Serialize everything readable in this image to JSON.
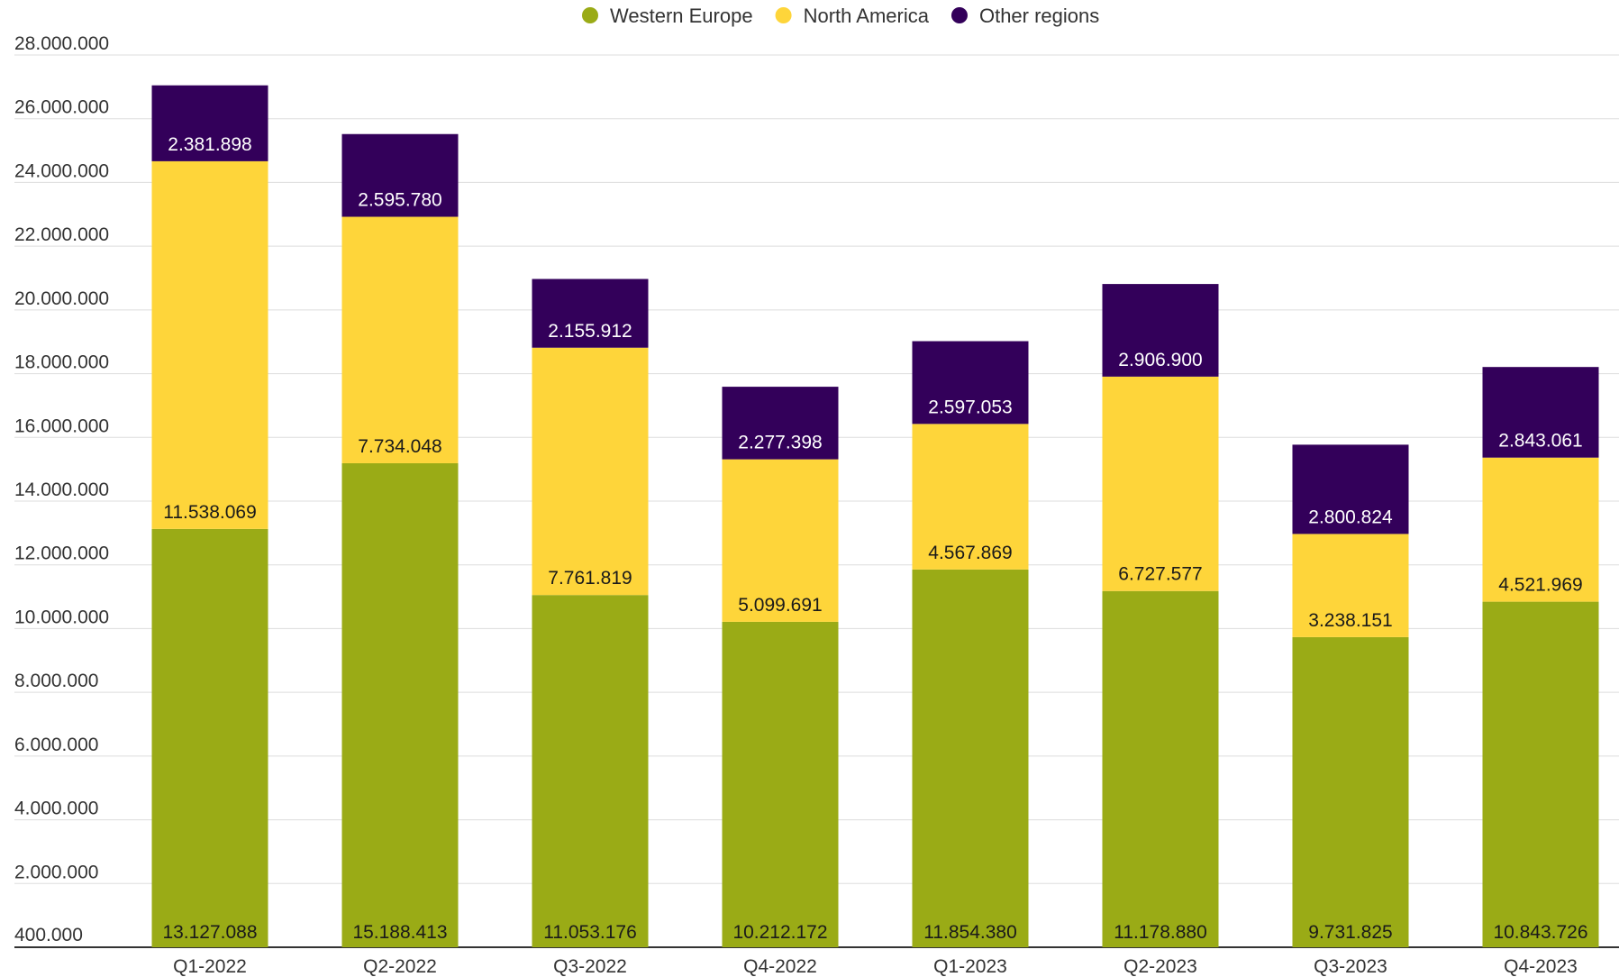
{
  "chart_data": {
    "type": "bar",
    "stacked": true,
    "categories": [
      "Q1-2022",
      "Q2-2022",
      "Q3-2022",
      "Q4-2022",
      "Q1-2023",
      "Q2-2023",
      "Q3-2023",
      "Q4-2023"
    ],
    "series": [
      {
        "name": "Western Europe",
        "color": "#9aab16",
        "label_color": "#1a1a1a",
        "values": [
          13127088,
          15188413,
          11053176,
          10212172,
          11854380,
          11178880,
          9731825,
          10843726
        ],
        "labels": [
          "13.127.088",
          "15.188.413",
          "11.053.176",
          "10.212.172",
          "11.854.380",
          "11.178.880",
          "9.731.825",
          "10.843.726"
        ]
      },
      {
        "name": "North America",
        "color": "#fed53a",
        "label_color": "#1a1a1a",
        "values": [
          11538069,
          7734048,
          7761819,
          5099691,
          4567869,
          6727577,
          3238151,
          4521969
        ],
        "labels": [
          "11.538.069",
          "7.734.048",
          "7.761.819",
          "5.099.691",
          "4.567.869",
          "6.727.577",
          "3.238.151",
          "4.521.969"
        ]
      },
      {
        "name": "Other regions",
        "color": "#33005a",
        "label_color": "#ffffff",
        "values": [
          2381898,
          2595780,
          2155912,
          2277398,
          2597053,
          2906900,
          2800824,
          2843061
        ],
        "labels": [
          "2.381.898",
          "2.595.780",
          "2.155.912",
          "2.277.398",
          "2.597.053",
          "2.906.900",
          "2.800.824",
          "2.843.061"
        ]
      }
    ],
    "yticks": [
      400000,
      2000000,
      4000000,
      6000000,
      8000000,
      10000000,
      12000000,
      14000000,
      16000000,
      18000000,
      20000000,
      22000000,
      24000000,
      26000000,
      28000000
    ],
    "ytick_labels": [
      "400.000",
      "2.000.000",
      "4.000.000",
      "6.000.000",
      "8.000.000",
      "10.000.000",
      "12.000.000",
      "14.000.000",
      "16.000.000",
      "18.000.000",
      "20.000.000",
      "22.000.000",
      "24.000.000",
      "26.000.000",
      "28.000.000"
    ],
    "ylim": [
      0,
      28000000
    ],
    "grid": true,
    "legend": "top-center",
    "title": "",
    "xlabel": "",
    "ylabel": ""
  }
}
